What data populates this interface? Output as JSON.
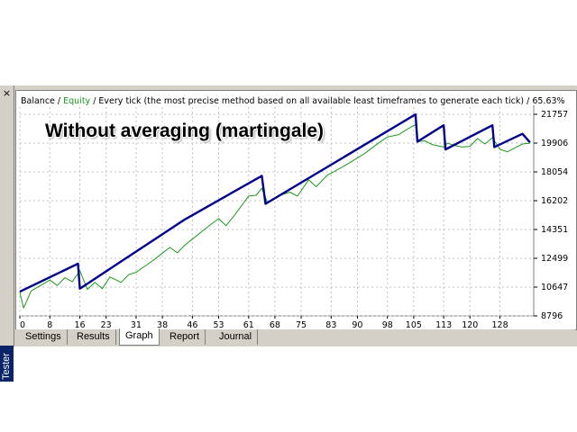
{
  "overlay_title": "Without averaging (martingale)",
  "tester": {
    "label": "Tester",
    "close": "×"
  },
  "tabs": [
    {
      "label": "Settings"
    },
    {
      "label": "Results"
    },
    {
      "label": "Graph",
      "active": true
    },
    {
      "label": "Report"
    },
    {
      "label": "Journal"
    }
  ],
  "colors": {
    "balance": "#00008b",
    "equity": "#1a9a1a",
    "grid": "#c0c0c0",
    "panel": "#d4d0c8"
  },
  "chart_data": {
    "type": "line",
    "header": {
      "balance_label": "Balance",
      "separator1": " / ",
      "equity_label": "Equity",
      "rest": " / Every tick (the most precise method based on all available least timeframes to generate each tick) / 65.63%"
    },
    "x_ticks": [
      "0",
      "8",
      "16",
      "23",
      "31",
      "38",
      "46",
      "53",
      "61",
      "68",
      "75",
      "83",
      "90",
      "98",
      "105",
      "113",
      "120",
      "128"
    ],
    "y_ticks": [
      "21757",
      "19906",
      "18054",
      "16202",
      "14351",
      "12499",
      "10647",
      "8796"
    ],
    "xlim": [
      0,
      137
    ],
    "ylim": [
      8796,
      21757
    ],
    "series": [
      {
        "name": "Balance",
        "x": [
          0,
          15.5,
          16,
          44,
          64.5,
          65.5,
          105.5,
          106,
          113,
          113.5,
          126,
          126.5,
          134,
          136
        ],
        "y": [
          10350,
          12150,
          10550,
          15000,
          17800,
          16000,
          21750,
          20000,
          21050,
          19500,
          21050,
          19650,
          20500,
          19950
        ]
      },
      {
        "name": "Equity",
        "x": [
          0,
          1,
          3,
          8,
          10,
          12,
          14,
          16,
          18,
          20,
          22,
          24,
          27,
          29,
          31,
          34,
          36,
          40,
          42,
          44,
          50,
          53,
          55,
          57,
          61,
          63,
          64.5,
          66,
          70,
          72,
          74,
          77,
          79,
          82,
          84,
          88,
          92,
          95,
          98,
          101,
          104,
          105.5,
          106,
          108,
          110,
          113,
          114,
          116,
          118,
          120,
          122,
          124,
          126,
          128,
          130,
          132,
          134,
          136
        ],
        "y": [
          10300,
          9300,
          10400,
          11100,
          10750,
          11250,
          11000,
          11700,
          10500,
          10950,
          10550,
          11300,
          10950,
          11450,
          11600,
          12100,
          12450,
          13200,
          12850,
          13350,
          14500,
          15050,
          14600,
          15200,
          16500,
          16550,
          17000,
          16100,
          16600,
          16750,
          16500,
          17550,
          17100,
          17850,
          18100,
          18650,
          19250,
          19800,
          20300,
          20450,
          20900,
          21100,
          20000,
          20050,
          19800,
          19650,
          19900,
          19750,
          19650,
          19700,
          20200,
          19850,
          20250,
          19500,
          19350,
          19600,
          19850,
          19900
        ]
      }
    ]
  }
}
